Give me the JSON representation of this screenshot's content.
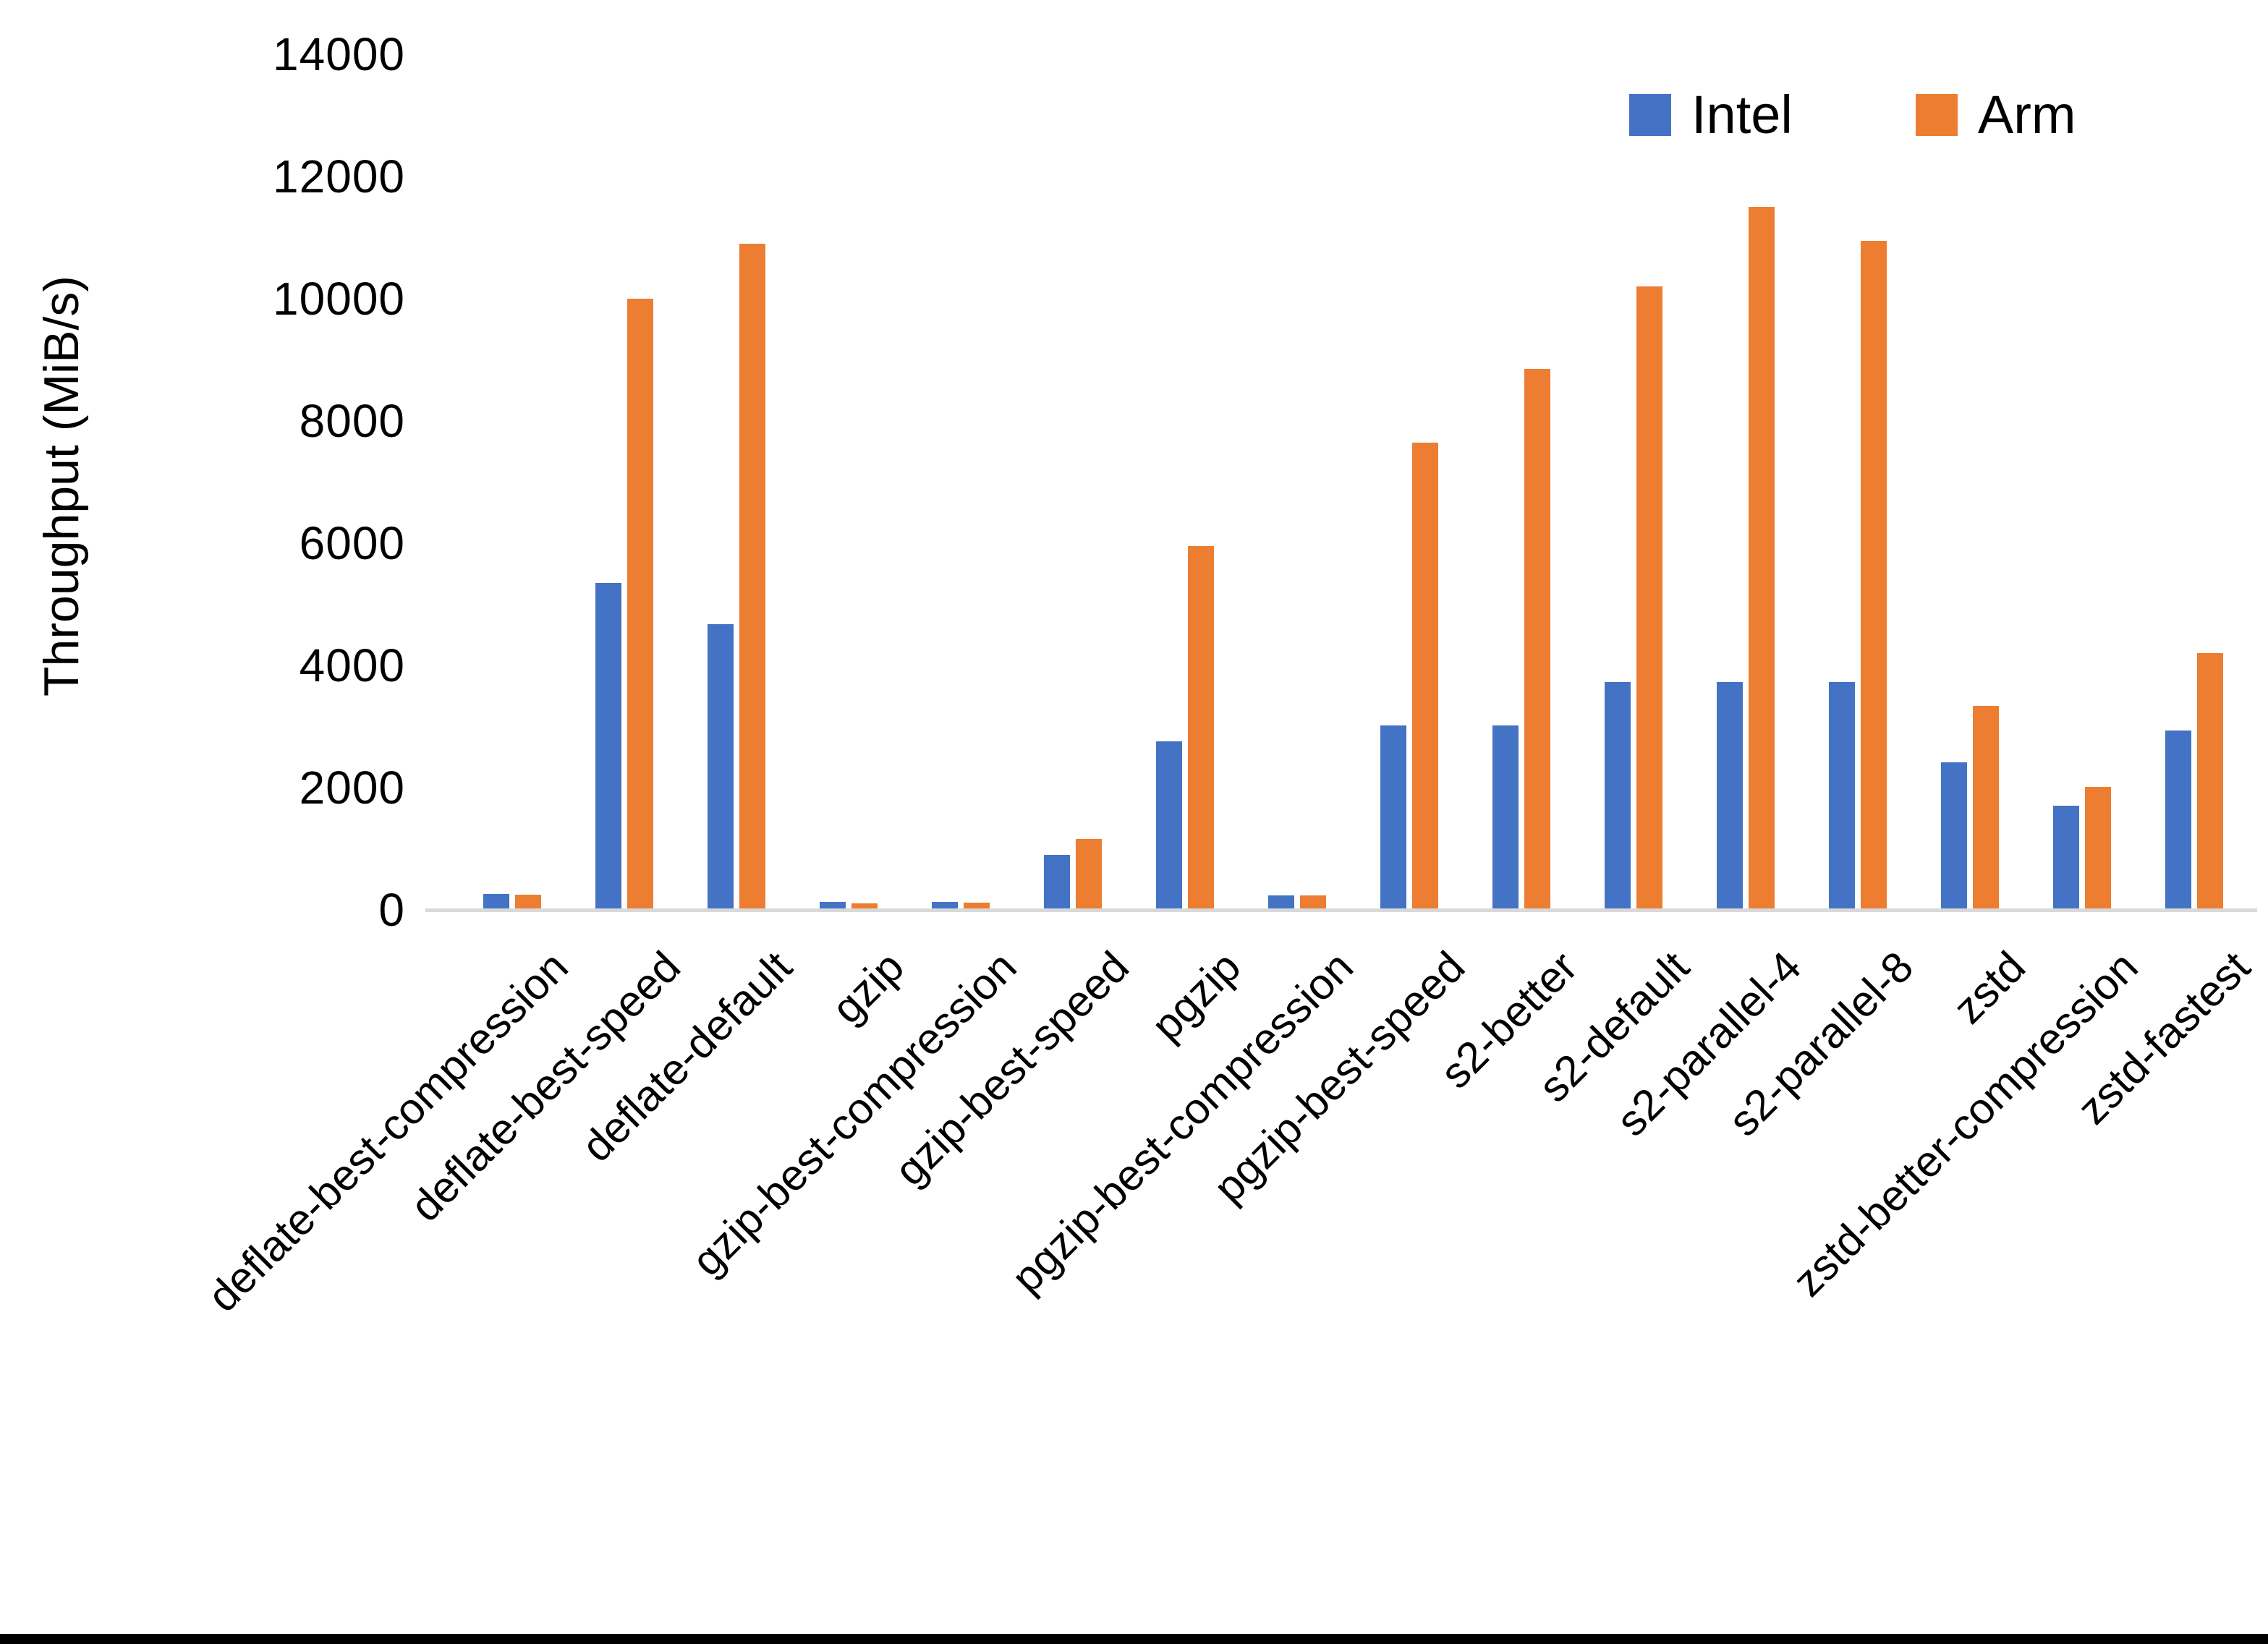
{
  "chart_data": {
    "type": "bar",
    "title": "",
    "xlabel": "",
    "ylabel": "Throughput (MiB/s)",
    "ylim": [
      0,
      14000
    ],
    "ytick_step": 2000,
    "grid": false,
    "legend_position": "top-right",
    "categories": [
      "deflate-best-compression",
      "deflate-best-speed",
      "deflate-default",
      "gzip",
      "gzip-best-compression",
      "gzip-best-speed",
      "pgzip",
      "pgzip-best-compression",
      "pgzip-best-speed",
      "s2-better",
      "s2-default",
      "s2-parallel-4",
      "s2-parallel-8",
      "zstd",
      "zstd-better-compression",
      "zstd-fastest"
    ],
    "series": [
      {
        "name": "Intel",
        "color": "#4472C4",
        "values": [
          260,
          5350,
          4670,
          130,
          135,
          900,
          2760,
          240,
          3020,
          3020,
          3730,
          3730,
          3730,
          2420,
          1710,
          2930
        ]
      },
      {
        "name": "Arm",
        "color": "#ED7D31",
        "values": [
          250,
          10000,
          10900,
          110,
          115,
          1160,
          5950,
          240,
          7650,
          8850,
          10200,
          11500,
          10950,
          3340,
          2010,
          4200
        ]
      }
    ]
  },
  "page": {
    "background": "#FFFFFF",
    "axis_line_color": "#D9D9D9",
    "bottom_bar_color": "#000000"
  }
}
